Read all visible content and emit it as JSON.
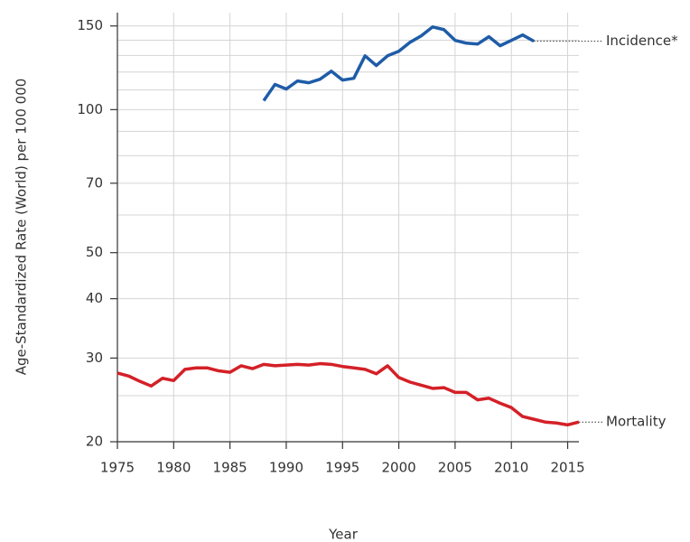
{
  "chart_data": {
    "type": "line",
    "x_label": "Year",
    "y_label": "Age-Standardized Rate (World) per 100 000",
    "log_y": true,
    "grid": true,
    "xlim": [
      1975,
      2016
    ],
    "xticks": [
      1975,
      1980,
      1985,
      1990,
      1995,
      2000,
      2005,
      2010,
      2015
    ],
    "ylim": [
      20,
      160
    ],
    "yticks": [
      20,
      30,
      40,
      50,
      70,
      100,
      150
    ],
    "minor_yticks": [
      25,
      60,
      80,
      90,
      110,
      120,
      130,
      140
    ],
    "series": [
      {
        "name": "Incidence*",
        "color": "#1f5ca8",
        "x": [
          1988,
          1989,
          1990,
          1991,
          1992,
          1993,
          1994,
          1995,
          1996,
          1997,
          1998,
          1999,
          2000,
          2001,
          2002,
          2003,
          2004,
          2005,
          2006,
          2007,
          2008,
          2009,
          2010,
          2011,
          2012
        ],
        "values": [
          104.4,
          113,
          110.5,
          114.9,
          113.9,
          115.9,
          120.5,
          115.4,
          116.4,
          129.8,
          123.8,
          129.8,
          132.7,
          138.6,
          143,
          149.3,
          147.4,
          139.9,
          138,
          137.4,
          142.4,
          136.3,
          139.9,
          143.6,
          139.3
        ]
      },
      {
        "name": "Mortality",
        "color": "#d42027",
        "x": [
          1975,
          1976,
          1977,
          1978,
          1979,
          1980,
          1981,
          1982,
          1983,
          1984,
          1985,
          1986,
          1987,
          1988,
          1989,
          1990,
          1991,
          1992,
          1993,
          1994,
          1995,
          1996,
          1997,
          1998,
          1999,
          2000,
          2001,
          2002,
          2003,
          2004,
          2005,
          2006,
          2007,
          2008,
          2009,
          2010,
          2011,
          2012,
          2013,
          2014,
          2015,
          2016
        ],
        "values": [
          27.9,
          27.5,
          26.8,
          26.2,
          27.2,
          26.9,
          28.4,
          28.6,
          28.6,
          28.2,
          28.0,
          28.9,
          28.5,
          29.1,
          28.9,
          29.0,
          29.1,
          29.0,
          29.2,
          29.1,
          28.8,
          28.6,
          28.4,
          27.8,
          28.9,
          27.3,
          26.7,
          26.3,
          25.9,
          26.0,
          25.4,
          25.4,
          24.5,
          24.7,
          24.1,
          23.6,
          22.6,
          22.3,
          22.0,
          21.9,
          21.7,
          22.0
        ]
      }
    ]
  }
}
